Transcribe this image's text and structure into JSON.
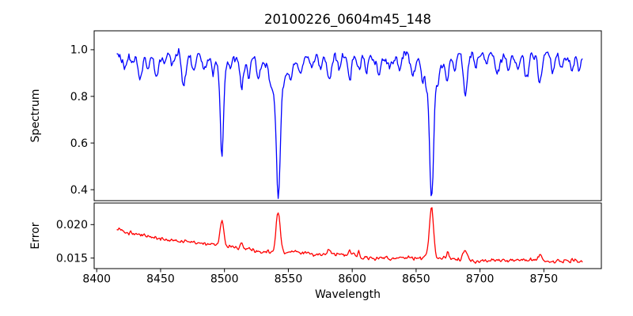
{
  "title": "20100226_0604m45_148",
  "background_color": "#ffffff",
  "chart_data": {
    "type": "line",
    "title": "20100226_0604m45_148",
    "xlabel": "Wavelength",
    "grid": false,
    "legend": "none",
    "xlim": [
      8398,
      8795
    ],
    "x_data_range": [
      8416,
      8780
    ],
    "xticks": [
      8400,
      8450,
      8500,
      8550,
      8600,
      8650,
      8700,
      8750
    ],
    "xtick_labels": [
      "8400",
      "8450",
      "8500",
      "8550",
      "8600",
      "8650",
      "8700",
      "8750"
    ],
    "n_points": 515,
    "seed": 9,
    "panels": [
      {
        "name": "spectrum",
        "ylabel": "Spectrum",
        "ylim": [
          0.353,
          1.081
        ],
        "yticks": [
          0.4,
          0.6,
          0.8,
          1.0
        ],
        "ytick_labels": [
          "0.4",
          "0.6",
          "0.8",
          "1.0"
        ],
        "color": "#0000ff",
        "continuum": 0.975,
        "noise_sigma": 0.015,
        "slow_sigma": 0.008,
        "strong_lines": [
          [
            8498.0,
            0.44,
            1.1,
            3.5,
            0.22
          ],
          [
            8542.1,
            0.6,
            1.4,
            5.0,
            0.25
          ],
          [
            8662.1,
            0.6,
            1.4,
            5.0,
            0.25
          ]
        ],
        "strong_line_minima": [
          0.54,
          0.375,
          0.375
        ],
        "weak_lines": [
          [
            8422,
            0.05,
            1.4
          ],
          [
            8428,
            0.04,
            1.2
          ],
          [
            8434,
            0.1,
            1.7
          ],
          [
            8440,
            0.06,
            1.2
          ],
          [
            8447,
            0.09,
            1.5
          ],
          [
            8453,
            0.05,
            1.2
          ],
          [
            8459,
            0.05,
            1.2
          ],
          [
            8468,
            0.13,
            1.6
          ],
          [
            8476,
            0.08,
            1.3
          ],
          [
            8484,
            0.05,
            1.2
          ],
          [
            8491,
            0.06,
            1.0
          ],
          [
            8505,
            0.05,
            1.0
          ],
          [
            8513.5,
            0.13,
            1.5
          ],
          [
            8519,
            0.08,
            1.2
          ],
          [
            8527,
            0.07,
            1.3
          ],
          [
            8536,
            0.05,
            1.0
          ],
          [
            8552,
            0.06,
            1.3
          ],
          [
            8560,
            0.05,
            1.2
          ],
          [
            8568,
            0.05,
            1.2
          ],
          [
            8575,
            0.06,
            1.3
          ],
          [
            8582,
            0.11,
            1.5
          ],
          [
            8590,
            0.06,
            1.2
          ],
          [
            8598,
            0.09,
            1.4
          ],
          [
            8605,
            0.06,
            1.2
          ],
          [
            8611,
            0.07,
            1.3
          ],
          [
            8621,
            0.08,
            1.4
          ],
          [
            8630,
            0.05,
            1.2
          ],
          [
            8637,
            0.06,
            1.2
          ],
          [
            8648,
            0.09,
            1.4
          ],
          [
            8655,
            0.05,
            1.0
          ],
          [
            8674.5,
            0.11,
            1.4
          ],
          [
            8680,
            0.06,
            1.1
          ],
          [
            8688.5,
            0.17,
            1.6
          ],
          [
            8697,
            0.06,
            1.2
          ],
          [
            8705,
            0.05,
            1.2
          ],
          [
            8713,
            0.07,
            1.3
          ],
          [
            8722,
            0.05,
            1.2
          ],
          [
            8730,
            0.06,
            1.2
          ],
          [
            8736.5,
            0.09,
            1.4
          ],
          [
            8747,
            0.11,
            1.5
          ],
          [
            8757,
            0.07,
            1.3
          ],
          [
            8764,
            0.06,
            1.2
          ],
          [
            8772,
            0.08,
            1.3
          ],
          [
            8778,
            0.06,
            1.2
          ]
        ]
      },
      {
        "name": "error",
        "ylabel": "Error",
        "ylim": [
          0.01343,
          0.02322
        ],
        "yticks": [
          0.015,
          0.02
        ],
        "ytick_labels": [
          "0.015",
          "0.020"
        ],
        "color": "#ff0000",
        "baseline": {
          "floor": 0.0144,
          "amplitude": 0.0049,
          "decay_scale": 110,
          "x0": 8416
        },
        "baseline_values": {
          "at_8416": 0.019,
          "at_8500": 0.0167,
          "at_8600": 0.0153,
          "at_8780": 0.0145
        },
        "noise_sigma": 0.0002,
        "slow_sigma": 0.0001,
        "peaks": [
          [
            8498,
            0.0042,
            1.3
          ],
          [
            8513.5,
            0.0007,
            1.2
          ],
          [
            8542,
            0.0062,
            1.6
          ],
          [
            8582,
            0.0009,
            1.3
          ],
          [
            8598,
            0.0007,
            1.2
          ],
          [
            8605,
            0.0007,
            1.1
          ],
          [
            8662,
            0.0076,
            1.6
          ],
          [
            8674.5,
            0.0008,
            1.2
          ],
          [
            8688.5,
            0.0013,
            1.4
          ],
          [
            8747,
            0.0008,
            1.3
          ]
        ],
        "peak_top_values": {
          "at_8498": 0.0209,
          "at_8542": 0.0222,
          "at_8662": 0.0225
        }
      }
    ]
  }
}
